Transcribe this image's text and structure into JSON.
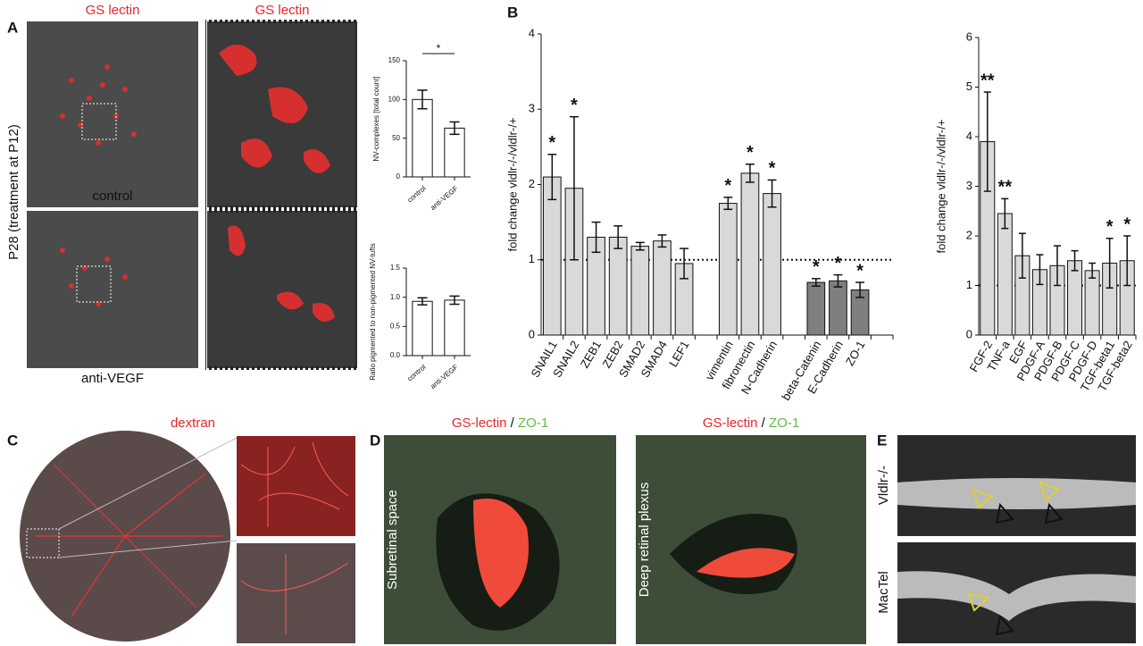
{
  "figure": {
    "panel_labels": [
      "A",
      "B",
      "C",
      "D",
      "E"
    ],
    "a_column_titles": [
      "GS lectin",
      "GS lectin"
    ],
    "a_row_labels": [
      "control",
      "anti-VEGF"
    ],
    "a_side_label": "P28 (treatment at P12)",
    "c_title": "dextran",
    "d_titles": [
      {
        "stain1": "GS-lectin",
        "separator": " / ",
        "stain2": "ZO-1"
      },
      {
        "stain1": "GS-lectin",
        "separator": " / ",
        "stain2": "ZO-1"
      }
    ],
    "d_side_labels": [
      "Subretinal space",
      "Deep retinal plexus"
    ],
    "e_side_labels": [
      "Vldlr-/-",
      "MacTel"
    ]
  },
  "chart_data": [
    {
      "type": "bar",
      "ylabel": "NV-complexes [total count]",
      "categories": [
        "control",
        "anti-VEGF"
      ],
      "values": [
        100,
        63
      ],
      "errors": [
        12,
        8
      ],
      "color": "#ffffff",
      "ylim": [
        0,
        150
      ],
      "yticks": [
        0,
        50,
        100,
        150
      ],
      "significance_bracket": "*"
    },
    {
      "type": "bar",
      "ylabel": "Ratio pigmented to non-pigmented NV-tufts",
      "categories": [
        "control",
        "anti-VEGF"
      ],
      "values": [
        0.93,
        0.95
      ],
      "errors": [
        0.06,
        0.07
      ],
      "color": "#ffffff",
      "ylim": [
        0,
        1.5
      ],
      "yticks": [
        {
          "value": 0,
          "label": "0.0"
        },
        {
          "value": 0.5,
          "label": "0.5"
        },
        {
          "value": 1,
          "label": "1.0"
        },
        {
          "value": 1.5,
          "label": "1.5"
        }
      ]
    },
    {
      "type": "bar",
      "ylabel": "fold change vldlr-/-/vldlr-/+",
      "categories": [
        "SNAIL1",
        "SNAIL2",
        "ZEB1",
        "ZEB2",
        "SMAD2",
        "SMAD4",
        "LEF1",
        null,
        "vimentin",
        "fibronectin",
        "N-Cadherin",
        null,
        "beta-Catenin",
        "E-Cadherin",
        "ZO-1",
        null
      ],
      "values": [
        2.1,
        1.95,
        1.3,
        1.3,
        1.18,
        1.25,
        0.95,
        null,
        1.75,
        2.15,
        1.88,
        null,
        0.7,
        0.72,
        0.6,
        null
      ],
      "errors": [
        0.3,
        0.95,
        0.2,
        0.15,
        0.05,
        0.08,
        0.2,
        null,
        0.08,
        0.12,
        0.18,
        null,
        0.05,
        0.08,
        0.1,
        null
      ],
      "colors": [
        "#d9d9d9",
        "#d9d9d9",
        "#d9d9d9",
        "#d9d9d9",
        "#d9d9d9",
        "#d9d9d9",
        "#d9d9d9",
        null,
        "#d9d9d9",
        "#d9d9d9",
        "#d9d9d9",
        null,
        "#7f7f7f",
        "#7f7f7f",
        "#7f7f7f",
        null
      ],
      "significance": [
        "*",
        "*",
        null,
        null,
        null,
        null,
        null,
        null,
        "*",
        "*",
        "*",
        null,
        "*",
        "*",
        "*",
        null
      ],
      "ylim": [
        0,
        4
      ],
      "yticks": [
        0,
        1,
        2,
        3,
        4
      ],
      "reference_line": 1
    },
    {
      "type": "bar",
      "ylabel": "fold change vldlr-/-/vldlr-/+",
      "categories": [
        "FGF-2",
        "TNF-a",
        "EGF",
        "PDGF-A",
        "PDGF-B",
        "PDGF-C",
        "PDGF-D",
        "TGF-beta1",
        "TGF-beta2"
      ],
      "values": [
        3.9,
        2.45,
        1.6,
        1.32,
        1.4,
        1.5,
        1.3,
        1.45,
        1.5
      ],
      "errors": [
        1.0,
        0.3,
        0.45,
        0.3,
        0.4,
        0.2,
        0.15,
        0.5,
        0.5
      ],
      "color": "#d9d9d9",
      "significance": [
        "**",
        "**",
        null,
        null,
        null,
        null,
        null,
        "*",
        "*"
      ],
      "ylim": [
        0,
        6
      ],
      "yticks": [
        0,
        1,
        2,
        3,
        4,
        5,
        6
      ],
      "reference_line": 1
    }
  ]
}
